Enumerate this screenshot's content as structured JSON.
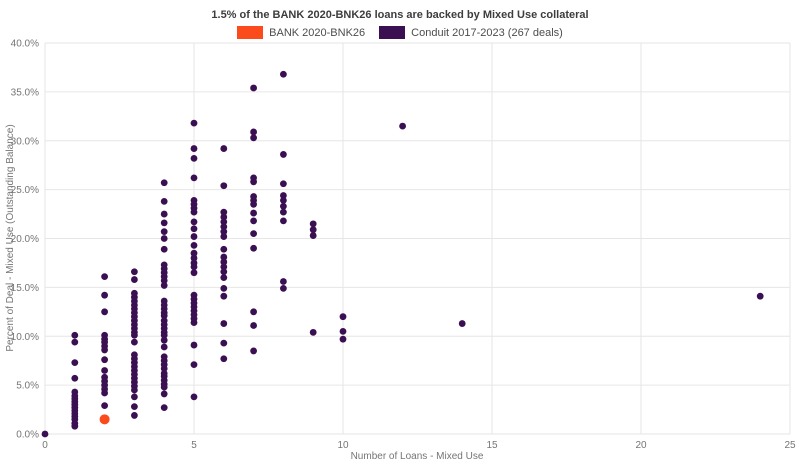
{
  "title": "1.5% of the BANK 2020-BNK26 loans are backed by Mixed Use collateral",
  "legend": {
    "items": [
      {
        "label": "BANK 2020-BNK26",
        "color": "#fb4a1c"
      },
      {
        "label": "Conduit 2017-2023 (267 deals)",
        "color": "#3b1053"
      }
    ]
  },
  "colors": {
    "accent_orange": "#fb4a1c",
    "accent_purple": "#3b1053",
    "grid": "#e6e6e6",
    "text_muted": "#757575",
    "title_text": "#3d3d3d"
  },
  "chart_data": {
    "type": "scatter",
    "title": "1.5% of the BANK 2020-BNK26 loans are backed by Mixed Use collateral",
    "xlabel": "Number of Loans - Mixed Use",
    "ylabel": "Percent of Deal - Mixed Use (Outstanding Balance)",
    "xlim": [
      0,
      25
    ],
    "ylim": [
      0,
      40
    ],
    "xtick_values": [
      0,
      5,
      10,
      15,
      20,
      25
    ],
    "xtick_labels": [
      "0",
      "5",
      "10",
      "15",
      "20",
      "25"
    ],
    "ytick_values": [
      0,
      5,
      10,
      15,
      20,
      25,
      30,
      35,
      40
    ],
    "ytick_labels": [
      "0.0%",
      "5.0%",
      "10.0%",
      "15.0%",
      "20.0%",
      "25.0%",
      "30.0%",
      "35.0%",
      "40.0%"
    ],
    "grid": true,
    "legend_position": "top",
    "series": [
      {
        "name": "Conduit 2017-2023 (267 deals)",
        "color": "#3b1053",
        "marker_radius": 3.4,
        "points": [
          [
            0,
            0.0
          ],
          [
            1,
            10.1
          ],
          [
            1,
            9.4
          ],
          [
            1,
            7.3
          ],
          [
            1,
            5.7
          ],
          [
            1,
            4.3
          ],
          [
            1,
            3.9
          ],
          [
            1,
            3.6
          ],
          [
            1,
            3.3
          ],
          [
            1,
            3.0
          ],
          [
            1,
            2.7
          ],
          [
            1,
            2.4
          ],
          [
            1,
            2.1
          ],
          [
            1,
            1.8
          ],
          [
            1,
            1.5
          ],
          [
            1,
            1.1
          ],
          [
            1,
            0.8
          ],
          [
            2,
            16.1
          ],
          [
            2,
            14.2
          ],
          [
            2,
            12.5
          ],
          [
            2,
            10.1
          ],
          [
            2,
            9.7
          ],
          [
            2,
            9.4
          ],
          [
            2,
            9.0
          ],
          [
            2,
            8.6
          ],
          [
            2,
            7.6
          ],
          [
            2,
            6.5
          ],
          [
            2,
            5.8
          ],
          [
            2,
            5.4
          ],
          [
            2,
            5.0
          ],
          [
            2,
            4.6
          ],
          [
            2,
            4.2
          ],
          [
            2,
            2.9
          ],
          [
            3,
            16.6
          ],
          [
            3,
            15.8
          ],
          [
            3,
            14.4
          ],
          [
            3,
            14.0
          ],
          [
            3,
            13.6
          ],
          [
            3,
            13.2
          ],
          [
            3,
            12.8
          ],
          [
            3,
            12.4
          ],
          [
            3,
            12.0
          ],
          [
            3,
            11.6
          ],
          [
            3,
            11.2
          ],
          [
            3,
            10.8
          ],
          [
            3,
            10.4
          ],
          [
            3,
            10.1
          ],
          [
            3,
            9.4
          ],
          [
            3,
            8.1
          ],
          [
            3,
            7.7
          ],
          [
            3,
            7.3
          ],
          [
            3,
            6.9
          ],
          [
            3,
            6.5
          ],
          [
            3,
            6.1
          ],
          [
            3,
            5.7
          ],
          [
            3,
            5.3
          ],
          [
            3,
            4.9
          ],
          [
            3,
            4.5
          ],
          [
            3,
            3.8
          ],
          [
            3,
            2.8
          ],
          [
            3,
            1.9
          ],
          [
            4,
            25.7
          ],
          [
            4,
            23.8
          ],
          [
            4,
            22.5
          ],
          [
            4,
            21.6
          ],
          [
            4,
            20.7
          ],
          [
            4,
            20.0
          ],
          [
            4,
            18.9
          ],
          [
            4,
            17.3
          ],
          [
            4,
            16.9
          ],
          [
            4,
            16.5
          ],
          [
            4,
            16.1
          ],
          [
            4,
            15.7
          ],
          [
            4,
            15.2
          ],
          [
            4,
            13.6
          ],
          [
            4,
            13.2
          ],
          [
            4,
            12.8
          ],
          [
            4,
            12.4
          ],
          [
            4,
            12.1
          ],
          [
            4,
            11.6
          ],
          [
            4,
            11.2
          ],
          [
            4,
            10.8
          ],
          [
            4,
            10.4
          ],
          [
            4,
            10.1
          ],
          [
            4,
            9.6
          ],
          [
            4,
            8.9
          ],
          [
            4,
            7.9
          ],
          [
            4,
            7.5
          ],
          [
            4,
            7.1
          ],
          [
            4,
            6.7
          ],
          [
            4,
            6.2
          ],
          [
            4,
            5.9
          ],
          [
            4,
            5.5
          ],
          [
            4,
            5.1
          ],
          [
            4,
            4.8
          ],
          [
            4,
            4.1
          ],
          [
            4,
            2.7
          ],
          [
            5,
            31.8
          ],
          [
            5,
            29.2
          ],
          [
            5,
            28.2
          ],
          [
            5,
            26.2
          ],
          [
            5,
            23.9
          ],
          [
            5,
            23.5
          ],
          [
            5,
            23.1
          ],
          [
            5,
            22.7
          ],
          [
            5,
            21.7
          ],
          [
            5,
            21.0
          ],
          [
            5,
            20.2
          ],
          [
            5,
            19.3
          ],
          [
            5,
            18.5
          ],
          [
            5,
            18.0
          ],
          [
            5,
            17.5
          ],
          [
            5,
            17.1
          ],
          [
            5,
            16.5
          ],
          [
            5,
            14.2
          ],
          [
            5,
            13.8
          ],
          [
            5,
            13.4
          ],
          [
            5,
            13.0
          ],
          [
            5,
            12.6
          ],
          [
            5,
            12.2
          ],
          [
            5,
            11.8
          ],
          [
            5,
            11.4
          ],
          [
            5,
            9.1
          ],
          [
            5,
            7.1
          ],
          [
            5,
            3.8
          ],
          [
            6,
            29.2
          ],
          [
            6,
            25.4
          ],
          [
            6,
            22.7
          ],
          [
            6,
            22.2
          ],
          [
            6,
            21.7
          ],
          [
            6,
            21.2
          ],
          [
            6,
            20.7
          ],
          [
            6,
            20.2
          ],
          [
            6,
            18.9
          ],
          [
            6,
            18.1
          ],
          [
            6,
            17.6
          ],
          [
            6,
            17.1
          ],
          [
            6,
            16.6
          ],
          [
            6,
            16.0
          ],
          [
            6,
            14.9
          ],
          [
            6,
            14.1
          ],
          [
            6,
            11.3
          ],
          [
            6,
            9.3
          ],
          [
            6,
            7.7
          ],
          [
            7,
            35.4
          ],
          [
            7,
            30.9
          ],
          [
            7,
            30.3
          ],
          [
            7,
            26.2
          ],
          [
            7,
            25.8
          ],
          [
            7,
            24.3
          ],
          [
            7,
            23.9
          ],
          [
            7,
            23.5
          ],
          [
            7,
            22.6
          ],
          [
            7,
            21.8
          ],
          [
            7,
            20.5
          ],
          [
            7,
            19.0
          ],
          [
            7,
            12.5
          ],
          [
            7,
            11.1
          ],
          [
            7,
            8.5
          ],
          [
            8,
            36.8
          ],
          [
            8,
            28.6
          ],
          [
            8,
            25.6
          ],
          [
            8,
            24.4
          ],
          [
            8,
            23.9
          ],
          [
            8,
            23.3
          ],
          [
            8,
            22.7
          ],
          [
            8,
            21.8
          ],
          [
            8,
            15.6
          ],
          [
            8,
            14.9
          ],
          [
            9,
            21.5
          ],
          [
            9,
            20.9
          ],
          [
            9,
            20.3
          ],
          [
            9,
            10.4
          ],
          [
            10,
            12.0
          ],
          [
            10,
            10.5
          ],
          [
            10,
            9.7
          ],
          [
            12,
            31.5
          ],
          [
            14,
            11.3
          ],
          [
            24,
            14.1
          ]
        ]
      },
      {
        "name": "BANK 2020-BNK26",
        "color": "#fb4a1c",
        "marker_radius": 5,
        "points": [
          [
            2,
            1.5
          ]
        ]
      }
    ]
  }
}
